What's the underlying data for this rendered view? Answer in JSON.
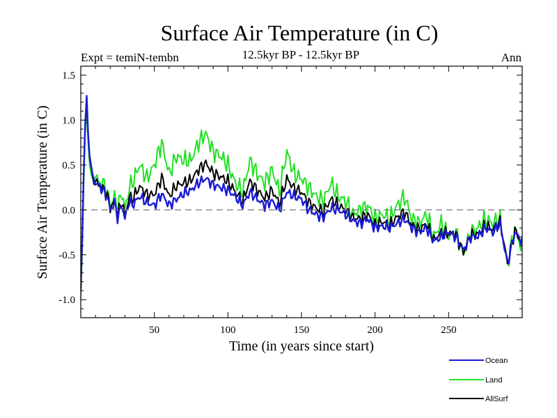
{
  "chart_data": {
    "type": "line",
    "title": "Surface Air Temperature (in C)",
    "subtitle": "12.5kyr BP - 12.5kyr BP",
    "expt_label": "Expt = temiN-tembn",
    "period_label": "Ann",
    "xlabel": "Time (in years since start)",
    "ylabel": "Surface Air Temperature (in C)",
    "xlim": [
      0,
      300
    ],
    "ylim": [
      -1.2,
      1.6
    ],
    "x_ticks": [
      50,
      100,
      150,
      200,
      250
    ],
    "x_tick_labels": [
      "50",
      "100",
      "150",
      "200",
      "250"
    ],
    "y_ticks": [
      -1.0,
      -0.5,
      0.0,
      0.5,
      1.0,
      1.5
    ],
    "y_tick_labels": [
      "-1.0",
      "-0.5",
      "0.0",
      "0.5",
      "1.0",
      "1.5"
    ],
    "reference_line": 0.0,
    "anchor_x": [
      0,
      1,
      2,
      3,
      4,
      5,
      6,
      7,
      8,
      10,
      12,
      15,
      18,
      20,
      23,
      25,
      28,
      30,
      33,
      35,
      40,
      45,
      50,
      55,
      60,
      65,
      70,
      75,
      80,
      85,
      90,
      95,
      100,
      105,
      110,
      115,
      120,
      125,
      130,
      135,
      140,
      145,
      150,
      155,
      160,
      165,
      170,
      175,
      180,
      185,
      190,
      195,
      200,
      205,
      210,
      215,
      220,
      225,
      230,
      235,
      240,
      245,
      250,
      255,
      260,
      265,
      270,
      275,
      280,
      285,
      290,
      295,
      300
    ],
    "series": [
      {
        "name": "Ocean",
        "color": "#1a1ad6",
        "values": [
          -0.85,
          -0.3,
          0.4,
          0.95,
          1.27,
          0.85,
          0.6,
          0.5,
          0.4,
          0.3,
          0.28,
          0.22,
          0.15,
          0.0,
          0.08,
          -0.08,
          0.05,
          -0.1,
          0.1,
          0.05,
          0.15,
          0.08,
          0.05,
          0.18,
          0.05,
          0.12,
          0.18,
          0.22,
          0.3,
          0.35,
          0.28,
          0.25,
          0.22,
          0.15,
          0.05,
          0.2,
          0.12,
          0.05,
          0.1,
          0.0,
          0.2,
          0.15,
          0.12,
          0.0,
          -0.05,
          -0.08,
          0.02,
          0.0,
          -0.05,
          -0.12,
          -0.15,
          -0.1,
          -0.2,
          -0.18,
          -0.2,
          -0.15,
          -0.1,
          -0.2,
          -0.25,
          -0.2,
          -0.35,
          -0.3,
          -0.25,
          -0.3,
          -0.45,
          -0.3,
          -0.3,
          -0.2,
          -0.25,
          -0.15,
          -0.6,
          -0.25,
          -0.35
        ]
      },
      {
        "name": "Land",
        "color": "#22e022",
        "values": [
          -1.0,
          -0.45,
          0.3,
          0.85,
          1.1,
          0.75,
          0.5,
          0.4,
          0.35,
          0.4,
          0.3,
          0.3,
          0.2,
          0.05,
          0.15,
          0.0,
          0.2,
          0.0,
          0.25,
          0.3,
          0.5,
          0.35,
          0.5,
          0.75,
          0.4,
          0.6,
          0.55,
          0.55,
          0.75,
          0.85,
          0.65,
          0.6,
          0.5,
          0.3,
          0.2,
          0.55,
          0.4,
          0.3,
          0.45,
          0.2,
          0.65,
          0.4,
          0.35,
          0.25,
          0.15,
          0.1,
          0.3,
          0.15,
          0.1,
          -0.05,
          0.0,
          0.05,
          -0.1,
          -0.05,
          -0.1,
          0.05,
          0.15,
          -0.1,
          -0.15,
          -0.05,
          -0.3,
          -0.15,
          -0.3,
          -0.25,
          -0.5,
          -0.25,
          -0.2,
          -0.1,
          -0.15,
          -0.1,
          -0.6,
          -0.2,
          -0.45
        ]
      },
      {
        "name": "AllSurf",
        "color": "#000000",
        "values": [
          -0.9,
          -0.35,
          0.38,
          0.92,
          1.22,
          0.82,
          0.58,
          0.48,
          0.38,
          0.32,
          0.28,
          0.24,
          0.16,
          0.02,
          0.1,
          -0.05,
          0.1,
          -0.07,
          0.15,
          0.12,
          0.26,
          0.17,
          0.17,
          0.36,
          0.15,
          0.27,
          0.3,
          0.33,
          0.45,
          0.52,
          0.41,
          0.37,
          0.32,
          0.2,
          0.1,
          0.32,
          0.22,
          0.13,
          0.22,
          0.07,
          0.35,
          0.24,
          0.2,
          0.08,
          0.02,
          -0.02,
          0.12,
          0.05,
          0.0,
          -0.09,
          -0.1,
          -0.05,
          -0.17,
          -0.13,
          -0.17,
          -0.08,
          -0.02,
          -0.17,
          -0.22,
          -0.15,
          -0.34,
          -0.25,
          -0.26,
          -0.28,
          -0.47,
          -0.28,
          -0.27,
          -0.17,
          -0.22,
          -0.13,
          -0.6,
          -0.23,
          -0.38
        ]
      }
    ],
    "legend": {
      "position": "bottom-right",
      "entries": [
        "Ocean",
        "Land",
        "AllSurf"
      ]
    }
  }
}
